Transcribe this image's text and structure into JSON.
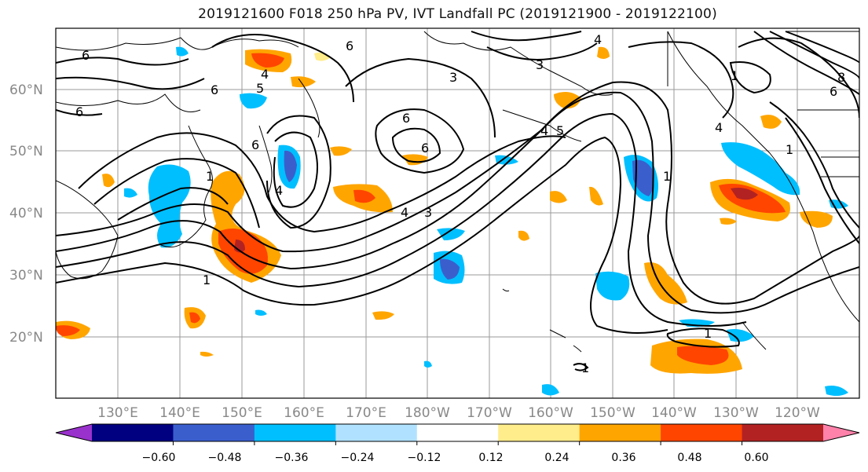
{
  "title": "2019121600 F018 250 hPa PV, IVT Landfall PC (2019121900 - 2019122100)",
  "map": {
    "lat_labels": [
      "60°N",
      "50°N",
      "40°N",
      "30°N",
      "20°N"
    ],
    "lon_labels": [
      "130°E",
      "140°E",
      "150°E",
      "160°E",
      "170°E",
      "180°W",
      "170°W",
      "160°W",
      "150°W",
      "140°W",
      "130°W",
      "120°W"
    ],
    "contour_labels": [
      "6",
      "6",
      "6",
      "4",
      "5",
      "6",
      "3",
      "3",
      "4",
      "4",
      "6",
      "6",
      "4",
      "5",
      "4",
      "3",
      "1",
      "1",
      "1",
      "1",
      "1",
      "1",
      "8",
      "6",
      "4",
      "6",
      "1"
    ]
  },
  "colorbar": {
    "colors": [
      "#9932cc",
      "#000080",
      "#3a5fcd",
      "#00bfff",
      "#b0e2ff",
      "#ffffff",
      "#ffec8b",
      "#ffa500",
      "#ff4500",
      "#b22222",
      "#ff82ab"
    ],
    "tick_labels": [
      "−0.60",
      "−0.48",
      "−0.36",
      "−0.24",
      "−0.12",
      "0.12",
      "0.24",
      "0.36",
      "0.48",
      "0.60"
    ]
  }
}
